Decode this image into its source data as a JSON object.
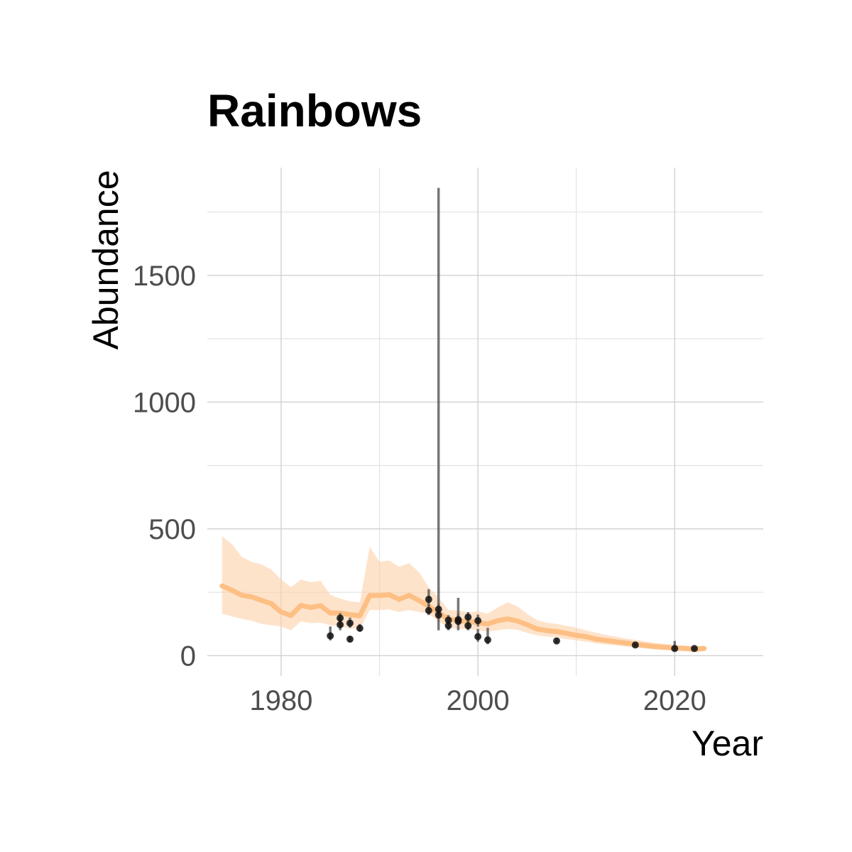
{
  "chart_data": {
    "type": "line",
    "title": "Rainbows",
    "xlabel": "Year",
    "ylabel": "Abundance",
    "xlim": [
      1972.5,
      2029
    ],
    "ylim": [
      -80,
      1925
    ],
    "x_ticks": [
      1980,
      2000,
      2020
    ],
    "x_minor_ticks": [
      1990,
      2010
    ],
    "y_ticks": [
      0,
      500,
      1000,
      1500
    ],
    "y_minor_ticks": [
      250,
      750,
      1250,
      1750
    ],
    "grid": true,
    "legend": "none",
    "colors": {
      "ribbon": "#fdd0a8",
      "line": "#fdbf84",
      "points": "#111111",
      "errorbars": "#555555"
    },
    "trend": {
      "x": [
        1974,
        1975,
        1976,
        1977,
        1978,
        1979,
        1980,
        1981,
        1982,
        1983,
        1984,
        1985,
        1986,
        1987,
        1988,
        1989,
        1990,
        1991,
        1992,
        1993,
        1994,
        1995,
        1996,
        1997,
        1998,
        1999,
        2000,
        2001,
        2002,
        2003,
        2004,
        2005,
        2006,
        2007,
        2008,
        2009,
        2010,
        2011,
        2012,
        2013,
        2014,
        2015,
        2016,
        2017,
        2018,
        2019,
        2020,
        2021,
        2022,
        2023
      ],
      "y": [
        275,
        258,
        238,
        232,
        218,
        205,
        172,
        158,
        198,
        190,
        197,
        168,
        168,
        162,
        157,
        237,
        237,
        240,
        222,
        238,
        218,
        195,
        168,
        145,
        138,
        135,
        130,
        125,
        138,
        145,
        137,
        122,
        105,
        99,
        95,
        88,
        80,
        75,
        65,
        60,
        55,
        50,
        45,
        40,
        36,
        33,
        30,
        28,
        25,
        28
      ],
      "lower": [
        165,
        155,
        145,
        138,
        125,
        120,
        115,
        100,
        135,
        128,
        130,
        120,
        115,
        108,
        105,
        180,
        180,
        182,
        172,
        180,
        172,
        165,
        135,
        112,
        105,
        105,
        100,
        95,
        100,
        105,
        102,
        90,
        80,
        75,
        72,
        65,
        60,
        55,
        48,
        44,
        40,
        36,
        32,
        28,
        25,
        22,
        20,
        18,
        15,
        18
      ],
      "upper": [
        470,
        440,
        390,
        370,
        360,
        340,
        300,
        270,
        300,
        290,
        295,
        240,
        225,
        215,
        210,
        430,
        370,
        375,
        350,
        365,
        330,
        270,
        230,
        180,
        178,
        170,
        175,
        165,
        190,
        210,
        195,
        165,
        140,
        130,
        125,
        118,
        110,
        100,
        90,
        82,
        75,
        68,
        62,
        56,
        50,
        46,
        42,
        40,
        36,
        40
      ]
    },
    "observations": [
      {
        "x": 1985,
        "y": 78,
        "low": 60,
        "high": 115
      },
      {
        "x": 1986,
        "y": 122,
        "low": 100,
        "high": 150
      },
      {
        "x": 1986,
        "y": 148,
        "low": 125,
        "high": 168
      },
      {
        "x": 1987,
        "y": 65,
        "low": 55,
        "high": 78
      },
      {
        "x": 1987,
        "y": 128,
        "low": 110,
        "high": 150
      },
      {
        "x": 1988,
        "y": 108,
        "low": 95,
        "high": 125
      },
      {
        "x": 1995,
        "y": 178,
        "low": 160,
        "high": 200
      },
      {
        "x": 1995,
        "y": 222,
        "low": 195,
        "high": 262
      },
      {
        "x": 1996,
        "y": 160,
        "low": 100,
        "high": 1845
      },
      {
        "x": 1996,
        "y": 183,
        "low": 165,
        "high": 205
      },
      {
        "x": 1997,
        "y": 118,
        "low": 100,
        "high": 140
      },
      {
        "x": 1997,
        "y": 140,
        "low": 120,
        "high": 160
      },
      {
        "x": 1998,
        "y": 135,
        "low": 100,
        "high": 228
      },
      {
        "x": 1998,
        "y": 142,
        "low": 125,
        "high": 165
      },
      {
        "x": 1999,
        "y": 118,
        "low": 100,
        "high": 140
      },
      {
        "x": 1999,
        "y": 152,
        "low": 130,
        "high": 172
      },
      {
        "x": 2000,
        "y": 75,
        "low": 55,
        "high": 105
      },
      {
        "x": 2000,
        "y": 138,
        "low": 115,
        "high": 162
      },
      {
        "x": 2001,
        "y": 62,
        "low": 45,
        "high": 110
      },
      {
        "x": 2008,
        "y": 58,
        "low": 50,
        "high": 68
      },
      {
        "x": 2016,
        "y": 42,
        "low": 35,
        "high": 50
      },
      {
        "x": 2020,
        "y": 28,
        "low": 18,
        "high": 58
      },
      {
        "x": 2022,
        "y": 28,
        "low": 22,
        "high": 35
      }
    ]
  }
}
